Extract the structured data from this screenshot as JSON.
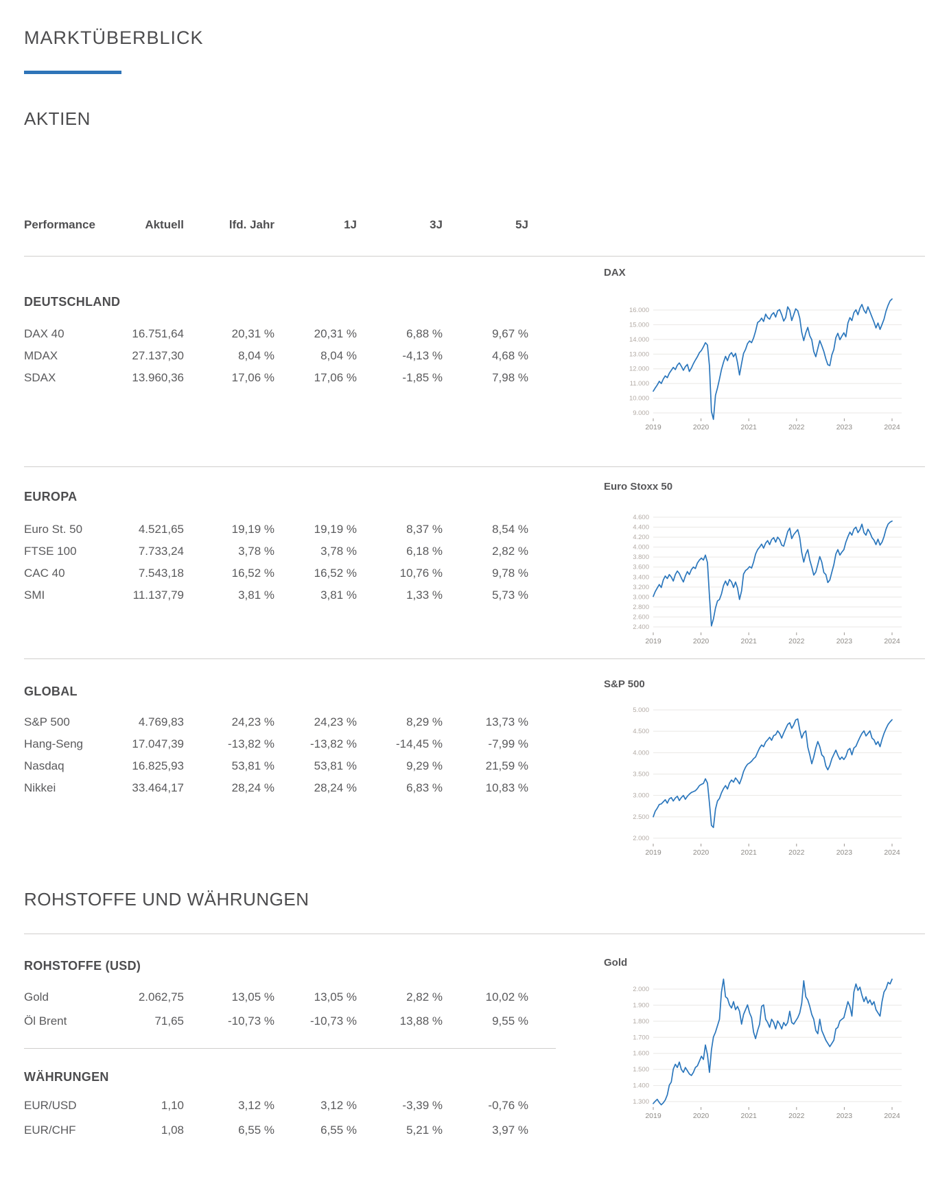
{
  "page": {
    "title": "MARKTÜBERBLICK",
    "accent_color": "#2e74b8"
  },
  "sections": {
    "aktien_title": "AKTIEN",
    "rohstoffe_title": "ROHSTOFFE UND WÄHRUNGEN"
  },
  "table": {
    "columns": [
      "Performance",
      "Aktuell",
      "lfd. Jahr",
      "1J",
      "3J",
      "5J"
    ],
    "groups": [
      {
        "id": "deutschland",
        "title": "DEUTSCHLAND",
        "rows": [
          {
            "label": "DAX 40",
            "cells": [
              "16.751,64",
              "20,31 %",
              "20,31 %",
              "6,88 %",
              "9,67 %"
            ]
          },
          {
            "label": "MDAX",
            "cells": [
              "27.137,30",
              "8,04 %",
              "8,04 %",
              "-4,13 %",
              "4,68 %"
            ]
          },
          {
            "label": "SDAX",
            "cells": [
              "13.960,36",
              "17,06 %",
              "17,06 %",
              "-1,85 %",
              "7,98 %"
            ]
          }
        ]
      },
      {
        "id": "europa",
        "title": "EUROPA",
        "rows": [
          {
            "label": "Euro St. 50",
            "cells": [
              "4.521,65",
              "19,19 %",
              "19,19 %",
              "8,37 %",
              "8,54 %"
            ]
          },
          {
            "label": "FTSE 100",
            "cells": [
              "7.733,24",
              "3,78 %",
              "3,78 %",
              "6,18 %",
              "2,82 %"
            ]
          },
          {
            "label": "CAC 40",
            "cells": [
              "7.543,18",
              "16,52 %",
              "16,52 %",
              "10,76 %",
              "9,78 %"
            ]
          },
          {
            "label": "SMI",
            "cells": [
              "11.137,79",
              "3,81 %",
              "3,81 %",
              "1,33 %",
              "5,73 %"
            ]
          }
        ]
      },
      {
        "id": "global",
        "title": "GLOBAL",
        "rows": [
          {
            "label": "S&P 500",
            "cells": [
              "4.769,83",
              "24,23 %",
              "24,23 %",
              "8,29 %",
              "13,73 %"
            ]
          },
          {
            "label": "Hang-Seng",
            "cells": [
              "17.047,39",
              "-13,82 %",
              "-13,82 %",
              "-14,45 %",
              "-7,99 %"
            ]
          },
          {
            "label": "Nasdaq",
            "cells": [
              "16.825,93",
              "53,81 %",
              "53,81 %",
              "9,29 %",
              "21,59 %"
            ]
          },
          {
            "label": "Nikkei",
            "cells": [
              "33.464,17",
              "28,24 %",
              "28,24 %",
              "6,83 %",
              "10,83 %"
            ]
          }
        ]
      },
      {
        "id": "rohstoffe",
        "title": "ROHSTOFFE (USD)",
        "rows": [
          {
            "label": "Gold",
            "cells": [
              "2.062,75",
              "13,05 %",
              "13,05 %",
              "2,82 %",
              "10,02 %"
            ]
          },
          {
            "label": "Öl Brent",
            "cells": [
              "71,65",
              "-10,73 %",
              "-10,73 %",
              "13,88 %",
              "9,55 %"
            ]
          }
        ]
      },
      {
        "id": "waehrungen",
        "title": "WÄHRUNGEN",
        "rows": [
          {
            "label": "EUR/USD",
            "cells": [
              "1,10",
              "3,12 %",
              "3,12 %",
              "-3,39 %",
              "-0,76 %"
            ]
          },
          {
            "label": "EUR/CHF",
            "cells": [
              "1,08",
              "6,55 %",
              "6,55 %",
              "5,21 %",
              "3,97 %"
            ]
          }
        ]
      }
    ]
  },
  "chart_data": [
    {
      "type": "line",
      "title": "DAX",
      "line_color": "#2a76bc",
      "grid": true,
      "legend": false,
      "x_range": [
        2019,
        2024
      ],
      "x_labels": [
        "2019",
        "2020",
        "2021",
        "2022",
        "2023",
        "2024"
      ],
      "y_tick_labels": [
        "16.000",
        "15.000",
        "14.000",
        "13.000",
        "12.000",
        "11.000",
        "10.000",
        "9.000"
      ],
      "y_tick_values": [
        16000,
        15000,
        14000,
        13000,
        12000,
        11000,
        10000,
        9000
      ],
      "values": [
        10480,
        10700,
        10900,
        11150,
        11000,
        11300,
        11520,
        11400,
        11700,
        11900,
        12100,
        11950,
        12250,
        12400,
        12180,
        11900,
        12150,
        12300,
        11820,
        12050,
        12350,
        12600,
        12820,
        13100,
        13250,
        13500,
        13780,
        13620,
        12200,
        9100,
        8560,
        10200,
        10700,
        11300,
        11950,
        12450,
        12850,
        12550,
        12950,
        13100,
        12820,
        13050,
        12420,
        11580,
        12350,
        13050,
        13320,
        13720,
        13900,
        13780,
        14100,
        14560,
        15150,
        15250,
        15450,
        15220,
        15720,
        15480,
        15380,
        15680,
        15820,
        15520,
        15950,
        16030,
        15680,
        15250,
        15480,
        16220,
        15980,
        15280,
        15680,
        16080,
        15950,
        15450,
        14480,
        13920,
        14450,
        14820,
        14250,
        13980,
        13180,
        12820,
        13380,
        13920,
        13580,
        13180,
        12680,
        12280,
        12220,
        12950,
        13320,
        14120,
        14420,
        13980,
        14220,
        14450,
        14180,
        15120,
        15480,
        15280,
        15820,
        16020,
        15680,
        16120,
        16380,
        15980,
        15780,
        16220,
        15880,
        15520,
        15180,
        14780,
        15120,
        14680,
        15020,
        15380,
        15920,
        16320,
        16620,
        16751
      ]
    },
    {
      "type": "line",
      "title": "Euro Stoxx 50",
      "line_color": "#2a76bc",
      "grid": true,
      "legend": false,
      "x_range": [
        2019,
        2024
      ],
      "x_labels": [
        "2019",
        "2020",
        "2021",
        "2022",
        "2023",
        "2024"
      ],
      "y_tick_labels": [
        "4.600",
        "4.400",
        "4.200",
        "4.000",
        "3.800",
        "3.600",
        "3.400",
        "3.200",
        "3.000",
        "2.800",
        "2.600",
        "2.400"
      ],
      "y_tick_values": [
        4600,
        4400,
        4200,
        4000,
        3800,
        3600,
        3400,
        3200,
        3000,
        2800,
        2600,
        2400
      ],
      "values": [
        3010,
        3110,
        3180,
        3250,
        3190,
        3340,
        3420,
        3370,
        3450,
        3400,
        3320,
        3450,
        3520,
        3470,
        3380,
        3300,
        3420,
        3510,
        3450,
        3550,
        3600,
        3570,
        3680,
        3740,
        3780,
        3740,
        3840,
        3690,
        3020,
        2420,
        2560,
        2780,
        2920,
        2950,
        3060,
        3230,
        3320,
        3230,
        3350,
        3300,
        3190,
        3300,
        3180,
        2950,
        3120,
        3460,
        3530,
        3560,
        3610,
        3580,
        3700,
        3860,
        3950,
        4000,
        4060,
        3980,
        4080,
        4130,
        4050,
        4150,
        4190,
        4100,
        4200,
        4150,
        4040,
        4020,
        4160,
        4310,
        4380,
        4170,
        4250,
        4300,
        4350,
        4190,
        3890,
        3700,
        3860,
        3950,
        3740,
        3600,
        3440,
        3500,
        3650,
        3810,
        3700,
        3490,
        3450,
        3290,
        3340,
        3500,
        3650,
        3860,
        3950,
        3840,
        3900,
        3950,
        4100,
        4210,
        4300,
        4240,
        4360,
        4400,
        4290,
        4350,
        4460,
        4290,
        4240,
        4360,
        4290,
        4190,
        4140,
        4050,
        4160,
        4040,
        4100,
        4210,
        4360,
        4460,
        4500,
        4521
      ]
    },
    {
      "type": "line",
      "title": "S&P 500",
      "line_color": "#2a76bc",
      "grid": true,
      "legend": false,
      "x_range": [
        2019,
        2024
      ],
      "x_labels": [
        "2019",
        "2020",
        "2021",
        "2022",
        "2023",
        "2024"
      ],
      "y_tick_labels": [
        "5.000",
        "4.500",
        "4.000",
        "3.500",
        "3.000",
        "2.500",
        "2.000"
      ],
      "y_tick_values": [
        5000,
        4500,
        4000,
        3500,
        3000,
        2500,
        2000
      ],
      "values": [
        2500,
        2630,
        2700,
        2790,
        2800,
        2850,
        2900,
        2820,
        2920,
        2950,
        2870,
        2940,
        2980,
        2880,
        2950,
        3000,
        2910,
        2980,
        3030,
        3070,
        3090,
        3110,
        3160,
        3230,
        3260,
        3280,
        3390,
        3290,
        2820,
        2300,
        2250,
        2680,
        2870,
        2930,
        3060,
        3160,
        3230,
        3150,
        3290,
        3360,
        3310,
        3410,
        3350,
        3270,
        3400,
        3560,
        3660,
        3730,
        3760,
        3800,
        3860,
        3900,
        4010,
        4110,
        4180,
        4140,
        4250,
        4300,
        4360,
        4290,
        4400,
        4420,
        4510,
        4450,
        4340,
        4460,
        4560,
        4660,
        4700,
        4570,
        4650,
        4766,
        4790,
        4530,
        4340,
        4460,
        4510,
        4130,
        3950,
        3740,
        3900,
        4110,
        4260,
        4140,
        3950,
        3900,
        3690,
        3600,
        3700,
        3860,
        3960,
        4060,
        3940,
        3840,
        3900,
        3840,
        3910,
        4060,
        4100,
        3950,
        4110,
        4150,
        4260,
        4360,
        4450,
        4510,
        4390,
        4450,
        4510,
        4340,
        4300,
        4190,
        4260,
        4140,
        4310,
        4450,
        4560,
        4660,
        4720,
        4770
      ]
    },
    {
      "type": "line",
      "title": "Gold",
      "line_color": "#2a76bc",
      "grid": true,
      "legend": false,
      "x_range": [
        2019,
        2024
      ],
      "x_labels": [
        "2019",
        "2020",
        "2021",
        "2022",
        "2023",
        "2024"
      ],
      "y_tick_labels": [
        "2.000",
        "1.900",
        "1.800",
        "1.700",
        "1.600",
        "1.500",
        "1.400",
        "1.300"
      ],
      "y_tick_values": [
        2000,
        1900,
        1800,
        1700,
        1600,
        1500,
        1400,
        1300
      ],
      "values": [
        1288,
        1302,
        1314,
        1294,
        1280,
        1292,
        1310,
        1342,
        1402,
        1422,
        1502,
        1532,
        1512,
        1546,
        1500,
        1482,
        1512,
        1492,
        1472,
        1462,
        1482,
        1512,
        1522,
        1552,
        1582,
        1562,
        1652,
        1592,
        1482,
        1622,
        1702,
        1732,
        1772,
        1812,
        1982,
        2062,
        1952,
        1942,
        1902,
        1882,
        1922,
        1872,
        1892,
        1862,
        1782,
        1842,
        1872,
        1902,
        1852,
        1822,
        1732,
        1692,
        1742,
        1782,
        1892,
        1902,
        1812,
        1792,
        1762,
        1812,
        1792,
        1752,
        1802,
        1782,
        1752,
        1792,
        1772,
        1792,
        1862,
        1792,
        1782,
        1802,
        1822,
        1852,
        1912,
        2052,
        1952,
        1932,
        1892,
        1842,
        1812,
        1742,
        1722,
        1812,
        1742,
        1712,
        1682,
        1662,
        1642,
        1662,
        1682,
        1752,
        1762,
        1802,
        1812,
        1822,
        1872,
        1922,
        1892,
        1832,
        1982,
        2032,
        1992,
        2012,
        1962,
        1922,
        1952,
        1912,
        1932,
        1902,
        1922,
        1872,
        1852,
        1832,
        1922,
        1982,
        2002,
        2042,
        2032,
        2062
      ]
    }
  ]
}
